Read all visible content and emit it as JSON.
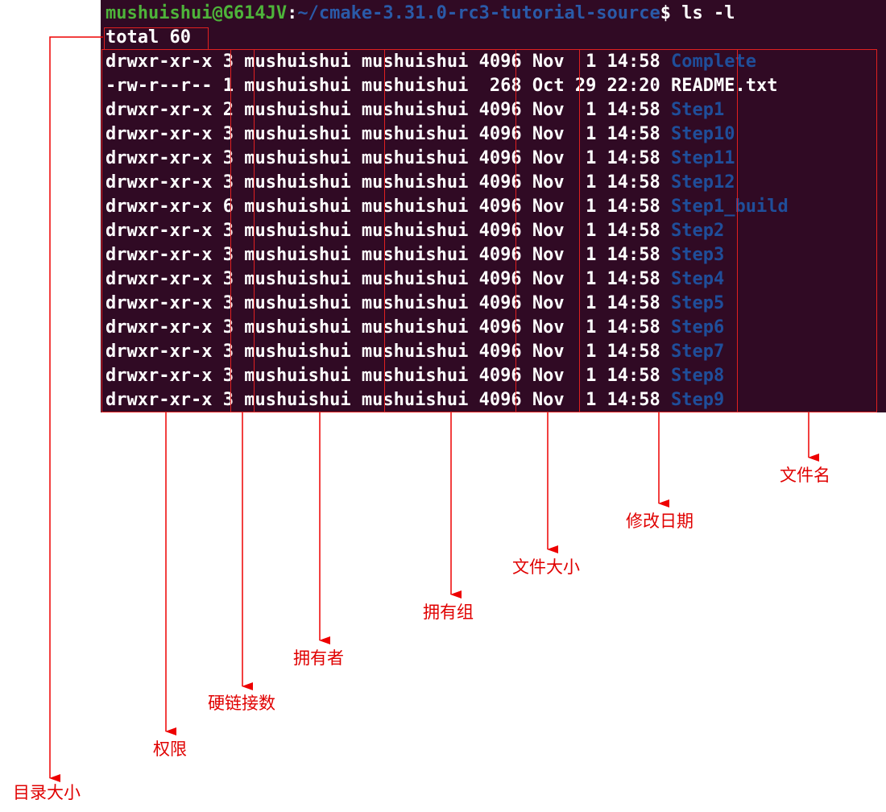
{
  "prompt": {
    "user": "mushuishui@G614JV",
    "sep": ":",
    "path": "~/cmake-3.31.0-rc3-tutorial-source",
    "symbol": "$ ",
    "command": "ls -l"
  },
  "total": "total 60",
  "listing": {
    "columns": [
      "permissions",
      "links",
      "owner",
      "group",
      "size",
      "date",
      "name"
    ],
    "rows": [
      {
        "perm": "drwxr-xr-x",
        "links": "3",
        "owner": "mushuishui",
        "group": "mushuishui",
        "size": "4096",
        "date": "Nov  1 14:58",
        "name": "Complete",
        "type": "dir"
      },
      {
        "perm": "-rw-r--r--",
        "links": "1",
        "owner": "mushuishui",
        "group": "mushuishui",
        "size": " 268",
        "date": "Oct 29 22:20",
        "name": "README.txt",
        "type": "file"
      },
      {
        "perm": "drwxr-xr-x",
        "links": "2",
        "owner": "mushuishui",
        "group": "mushuishui",
        "size": "4096",
        "date": "Nov  1 14:58",
        "name": "Step1",
        "type": "dir"
      },
      {
        "perm": "drwxr-xr-x",
        "links": "3",
        "owner": "mushuishui",
        "group": "mushuishui",
        "size": "4096",
        "date": "Nov  1 14:58",
        "name": "Step10",
        "type": "dir"
      },
      {
        "perm": "drwxr-xr-x",
        "links": "3",
        "owner": "mushuishui",
        "group": "mushuishui",
        "size": "4096",
        "date": "Nov  1 14:58",
        "name": "Step11",
        "type": "dir"
      },
      {
        "perm": "drwxr-xr-x",
        "links": "3",
        "owner": "mushuishui",
        "group": "mushuishui",
        "size": "4096",
        "date": "Nov  1 14:58",
        "name": "Step12",
        "type": "dir"
      },
      {
        "perm": "drwxr-xr-x",
        "links": "6",
        "owner": "mushuishui",
        "group": "mushuishui",
        "size": "4096",
        "date": "Nov  1 14:58",
        "name": "Step1_build",
        "type": "dir"
      },
      {
        "perm": "drwxr-xr-x",
        "links": "3",
        "owner": "mushuishui",
        "group": "mushuishui",
        "size": "4096",
        "date": "Nov  1 14:58",
        "name": "Step2",
        "type": "dir"
      },
      {
        "perm": "drwxr-xr-x",
        "links": "3",
        "owner": "mushuishui",
        "group": "mushuishui",
        "size": "4096",
        "date": "Nov  1 14:58",
        "name": "Step3",
        "type": "dir"
      },
      {
        "perm": "drwxr-xr-x",
        "links": "3",
        "owner": "mushuishui",
        "group": "mushuishui",
        "size": "4096",
        "date": "Nov  1 14:58",
        "name": "Step4",
        "type": "dir"
      },
      {
        "perm": "drwxr-xr-x",
        "links": "3",
        "owner": "mushuishui",
        "group": "mushuishui",
        "size": "4096",
        "date": "Nov  1 14:58",
        "name": "Step5",
        "type": "dir"
      },
      {
        "perm": "drwxr-xr-x",
        "links": "3",
        "owner": "mushuishui",
        "group": "mushuishui",
        "size": "4096",
        "date": "Nov  1 14:58",
        "name": "Step6",
        "type": "dir"
      },
      {
        "perm": "drwxr-xr-x",
        "links": "3",
        "owner": "mushuishui",
        "group": "mushuishui",
        "size": "4096",
        "date": "Nov  1 14:58",
        "name": "Step7",
        "type": "dir"
      },
      {
        "perm": "drwxr-xr-x",
        "links": "3",
        "owner": "mushuishui",
        "group": "mushuishui",
        "size": "4096",
        "date": "Nov  1 14:58",
        "name": "Step8",
        "type": "dir"
      },
      {
        "perm": "drwxr-xr-x",
        "links": "3",
        "owner": "mushuishui",
        "group": "mushuishui",
        "size": "4096",
        "date": "Nov  1 14:58",
        "name": "Step9",
        "type": "dir"
      }
    ]
  },
  "annotations": {
    "total_label": "目录大小",
    "perm_label": "权限",
    "links_label": "硬链接数",
    "owner_label": "拥有者",
    "group_label": "拥有组",
    "size_label": "文件大小",
    "date_label": "修改日期",
    "name_label": "文件名"
  },
  "colors": {
    "terminal_bg": "#300a24",
    "prompt_user": "#4eb43a",
    "prompt_path": "#2a5aa8",
    "directory": "#1f4e9a",
    "text": "#ffffff",
    "annotation": "#e00000"
  }
}
